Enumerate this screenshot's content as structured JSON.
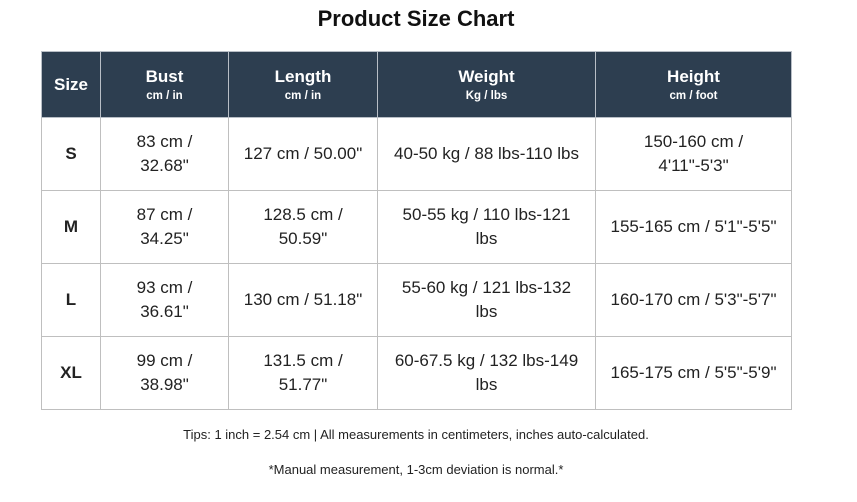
{
  "header": {
    "title": "Product Size Chart"
  },
  "table": {
    "columns": [
      {
        "name": "Size"
      },
      {
        "name": "Bust",
        "unit": "cm / in"
      },
      {
        "name": "Length",
        "unit": "cm / in"
      },
      {
        "name": "Weight",
        "unit": "Kg / lbs"
      },
      {
        "name": "Height",
        "unit": "cm / foot"
      }
    ],
    "rows": [
      [
        "S",
        "83 cm / 32.68\"",
        "127 cm / 50.00\"",
        "40-50 kg / 88 lbs-110 lbs",
        "150-160 cm / 4'11\"-5'3\""
      ],
      [
        "M",
        "87 cm / 34.25\"",
        "128.5 cm / 50.59\"",
        "50-55 kg / 110 lbs-121 lbs",
        "155-165 cm / 5'1\"-5'5\""
      ],
      [
        "L",
        "93 cm / 36.61\"",
        "130 cm / 51.18\"",
        "55-60 kg / 121 lbs-132 lbs",
        "160-170 cm / 5'3\"-5'7\""
      ],
      [
        "XL",
        "99 cm / 38.98\"",
        "131.5 cm / 51.77\"",
        "60-67.5 kg / 132 lbs-149 lbs",
        "165-175 cm / 5'5\"-5'9\""
      ]
    ]
  },
  "footer": {
    "tips": "Tips: 1 inch = 2.54 cm | All measurements in centimeters, inches auto-calculated.",
    "note": "*Manual measurement, 1-3cm deviation is normal.*"
  }
}
